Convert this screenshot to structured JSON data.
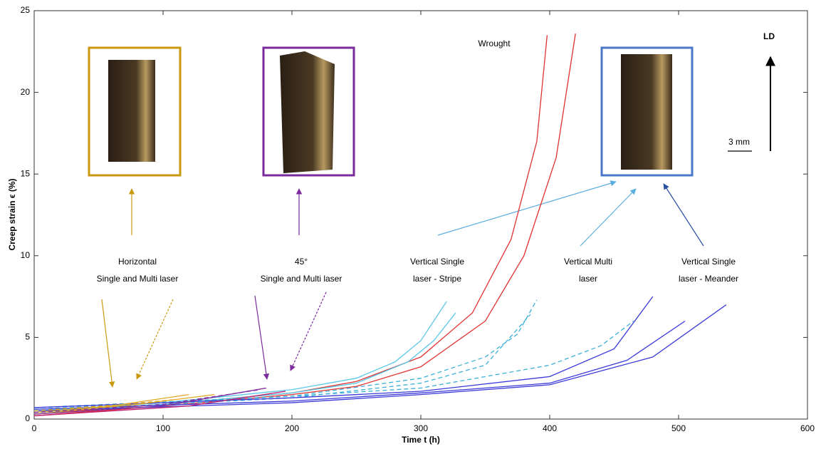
{
  "chart_data": {
    "type": "line",
    "xlabel": "Time t (h)",
    "ylabel": "Creep strain ϵ (%)",
    "xlim": [
      0,
      600
    ],
    "xticks": [
      0,
      100,
      200,
      300,
      400,
      500,
      600
    ],
    "ylim": [
      0,
      25
    ],
    "yticks": [
      0,
      5,
      10,
      15,
      20,
      25
    ],
    "series": [
      {
        "color": "#e03030",
        "x": [
          0,
          100,
          200,
          250,
          300,
          340,
          370,
          390,
          398
        ],
        "values": [
          0.3,
          0.9,
          1.6,
          2.3,
          3.8,
          6.5,
          11,
          17,
          23.5
        ]
      },
      {
        "color": "#e03030",
        "x": [
          0,
          100,
          200,
          250,
          300,
          350,
          380,
          405,
          420
        ],
        "values": [
          0.2,
          0.8,
          1.5,
          2.0,
          3.2,
          6,
          10,
          16,
          23.6
        ]
      },
      {
        "color": "#5bc8e8",
        "x": [
          0,
          100,
          200,
          250,
          280,
          300,
          320
        ],
        "values": [
          0.5,
          1.0,
          1.8,
          2.5,
          3.5,
          4.8,
          7.2
        ]
      },
      {
        "color": "#5bc8e8",
        "x": [
          0,
          100,
          200,
          250,
          290,
          310,
          327
        ],
        "values": [
          0.4,
          0.9,
          1.6,
          2.2,
          3.5,
          4.8,
          6.5
        ]
      },
      {
        "color": "#3bb0d8",
        "dash": true,
        "x": [
          0,
          100,
          200,
          300,
          350,
          375,
          390
        ],
        "values": [
          0.6,
          1.0,
          1.4,
          2.5,
          3.8,
          5.2,
          7.3
        ]
      },
      {
        "color": "#3bb0d8",
        "dash": true,
        "x": [
          0,
          200,
          300,
          350,
          385
        ],
        "values": [
          0.5,
          1.3,
          2.2,
          3.3,
          6.4
        ]
      },
      {
        "color": "#3bb0d8",
        "dash": true,
        "x": [
          0,
          200,
          300,
          400,
          440,
          465
        ],
        "values": [
          0.7,
          1.4,
          1.9,
          3.3,
          4.5,
          6.0
        ]
      },
      {
        "color": "#3a3ad8",
        "x": [
          0,
          200,
          300,
          400,
          450,
          480
        ],
        "values": [
          0.7,
          1.3,
          1.7,
          2.6,
          4.3,
          7.5
        ]
      },
      {
        "color": "#3a3ad8",
        "x": [
          0,
          200,
          300,
          400,
          460,
          505
        ],
        "values": [
          0.6,
          1.1,
          1.6,
          2.2,
          3.6,
          6.0
        ]
      },
      {
        "color": "#3a3ad8",
        "x": [
          0,
          200,
          300,
          400,
          480,
          537
        ],
        "values": [
          0.5,
          1.0,
          1.5,
          2.1,
          3.8,
          7.0
        ]
      },
      {
        "color": "#e0a820",
        "x": [
          0,
          60,
          120
        ],
        "values": [
          0.4,
          0.8,
          1.5
        ]
      },
      {
        "color": "#e0a820",
        "x": [
          0,
          80,
          140
        ],
        "values": [
          0.3,
          0.9,
          1.5
        ]
      },
      {
        "color": "#e0a820",
        "dash": true,
        "x": [
          0,
          70,
          110
        ],
        "values": [
          0.5,
          0.9,
          1.2
        ]
      },
      {
        "color": "#8030a0",
        "x": [
          0,
          100,
          180
        ],
        "values": [
          0.3,
          0.8,
          1.9
        ]
      },
      {
        "color": "#8030a0",
        "dash": true,
        "x": [
          0,
          100,
          175
        ],
        "values": [
          0.4,
          0.9,
          1.8
        ]
      },
      {
        "color": "#c02070",
        "x": [
          0,
          120,
          195
        ],
        "values": [
          0.2,
          0.8,
          1.7
        ]
      }
    ],
    "annotations": [
      {
        "lines": [
          "Wrought"
        ],
        "color": "#d42020"
      },
      {
        "lines": [
          "LD"
        ],
        "color": "#000000"
      },
      {
        "lines": [
          "3 mm"
        ],
        "color": "#000000"
      },
      {
        "lines": [
          "Horizontal",
          "Single and Multi laser"
        ],
        "color": "#c99a10"
      },
      {
        "lines": [
          "45°",
          "Single and Multi laser"
        ],
        "color": "#7a2a9c"
      },
      {
        "lines": [
          "Vertical Single",
          "laser - Stripe"
        ],
        "color": "#5aaee0"
      },
      {
        "lines": [
          "Vertical Multi",
          "laser"
        ],
        "color": "#5aaee0"
      },
      {
        "lines": [
          "Vertical Single",
          "laser - Meander"
        ],
        "color": "#2a4ea0"
      }
    ]
  }
}
